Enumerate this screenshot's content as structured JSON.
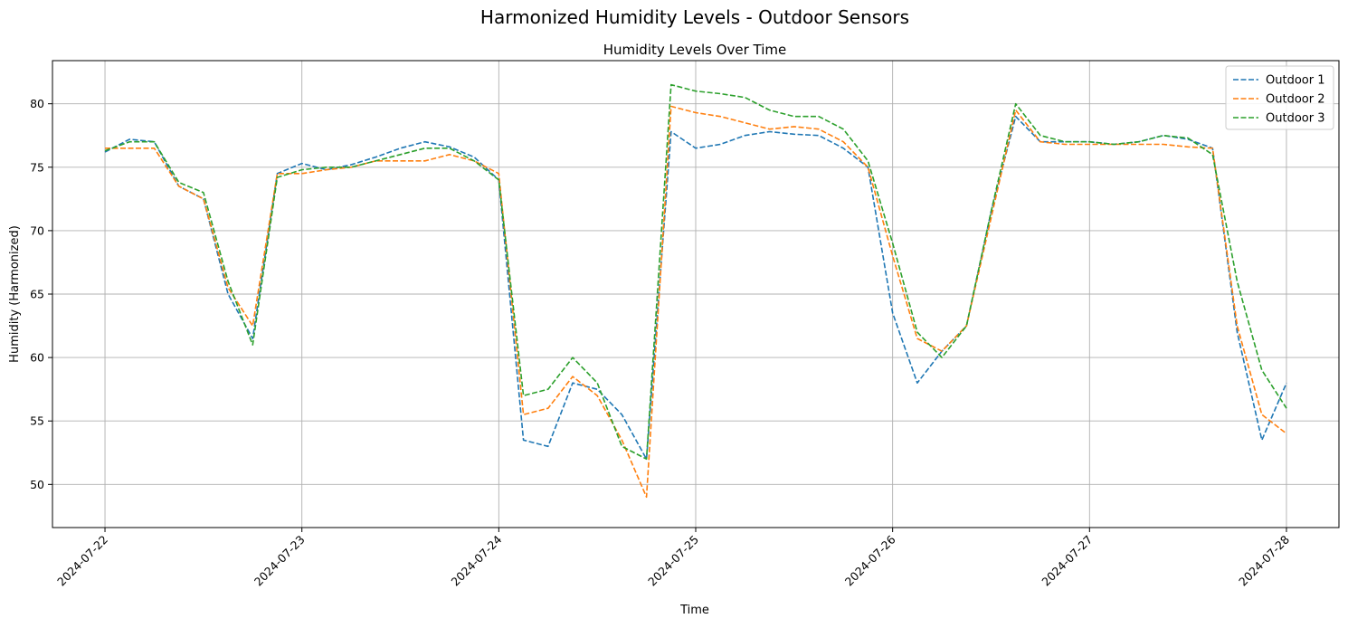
{
  "figure": {
    "suptitle": "Harmonized Humidity Levels - Outdoor Sensors"
  },
  "chart_data": {
    "type": "line",
    "title": "Humidity Levels Over Time",
    "xlabel": "Time",
    "ylabel": "Humidity (Harmonized)",
    "x_ticks": [
      "2024-07-22",
      "2024-07-23",
      "2024-07-24",
      "2024-07-25",
      "2024-07-26",
      "2024-07-27",
      "2024-07-28"
    ],
    "y_ticks": [
      50,
      55,
      60,
      65,
      70,
      75,
      80
    ],
    "xlim": [
      "2023-07-21T17:36",
      "2024-07-28T06:24"
    ],
    "ylim": [
      46.6,
      83.4
    ],
    "grid": true,
    "line_style": "dashed",
    "legend_position": "upper right",
    "x": [
      "2024-07-22T00:00",
      "2024-07-22T03:00",
      "2024-07-22T06:00",
      "2024-07-22T09:00",
      "2024-07-22T12:00",
      "2024-07-22T15:00",
      "2024-07-22T18:00",
      "2024-07-22T21:00",
      "2024-07-23T00:00",
      "2024-07-23T03:00",
      "2024-07-23T06:00",
      "2024-07-23T09:00",
      "2024-07-23T12:00",
      "2024-07-23T15:00",
      "2024-07-23T18:00",
      "2024-07-23T21:00",
      "2024-07-24T00:00",
      "2024-07-24T03:00",
      "2024-07-24T06:00",
      "2024-07-24T09:00",
      "2024-07-24T12:00",
      "2024-07-24T15:00",
      "2024-07-24T18:00",
      "2024-07-24T21:00",
      "2024-07-25T00:00",
      "2024-07-25T03:00",
      "2024-07-25T06:00",
      "2024-07-25T09:00",
      "2024-07-25T12:00",
      "2024-07-25T15:00",
      "2024-07-25T18:00",
      "2024-07-25T21:00",
      "2024-07-26T00:00",
      "2024-07-26T03:00",
      "2024-07-26T06:00",
      "2024-07-26T09:00",
      "2024-07-26T12:00",
      "2024-07-26T15:00",
      "2024-07-26T18:00",
      "2024-07-26T21:00",
      "2024-07-27T00:00",
      "2024-07-27T03:00",
      "2024-07-27T06:00",
      "2024-07-27T09:00",
      "2024-07-27T12:00",
      "2024-07-27T15:00",
      "2024-07-27T18:00",
      "2024-07-27T21:00",
      "2024-07-28T00:00"
    ],
    "series": [
      {
        "name": "Outdoor 1",
        "color": "#1f77b4",
        "values": [
          76.2,
          77.2,
          77.0,
          73.5,
          72.5,
          65.0,
          61.5,
          74.5,
          75.3,
          74.8,
          75.2,
          75.8,
          76.5,
          77.0,
          76.6,
          75.8,
          74.0,
          53.5,
          53.0,
          58.0,
          57.5,
          55.5,
          52.0,
          77.8,
          76.5,
          76.8,
          77.5,
          77.8,
          77.6,
          77.5,
          76.5,
          75.0,
          63.5,
          58.0,
          60.5,
          62.5,
          71.5,
          79.0,
          77.0,
          77.0,
          77.0,
          76.8,
          77.0,
          77.5,
          77.2,
          76.5,
          62.0,
          53.5,
          58.0
        ]
      },
      {
        "name": "Outdoor 2",
        "color": "#ff7f0e",
        "values": [
          76.5,
          76.5,
          76.5,
          73.5,
          72.5,
          65.5,
          62.5,
          74.5,
          74.5,
          74.8,
          75.0,
          75.5,
          75.5,
          75.5,
          76.0,
          75.5,
          74.5,
          55.5,
          56.0,
          58.5,
          57.0,
          53.5,
          49.0,
          79.8,
          79.3,
          79.0,
          78.5,
          78.0,
          78.2,
          78.0,
          77.0,
          75.0,
          68.0,
          61.5,
          60.5,
          62.5,
          71.0,
          79.5,
          77.0,
          76.8,
          76.8,
          76.8,
          76.8,
          76.8,
          76.6,
          76.5,
          62.5,
          55.5,
          54.0
        ]
      },
      {
        "name": "Outdoor 3",
        "color": "#2ca02c",
        "values": [
          76.3,
          77.0,
          77.0,
          73.8,
          73.0,
          66.0,
          61.0,
          74.2,
          74.8,
          75.0,
          75.0,
          75.5,
          76.0,
          76.5,
          76.5,
          75.5,
          74.0,
          57.0,
          57.5,
          60.0,
          58.0,
          53.0,
          52.0,
          81.5,
          81.0,
          80.8,
          80.5,
          79.5,
          79.0,
          79.0,
          78.0,
          75.5,
          69.0,
          62.0,
          60.0,
          62.5,
          71.5,
          80.0,
          77.5,
          77.0,
          77.0,
          76.8,
          77.0,
          77.5,
          77.3,
          76.0,
          66.0,
          59.0,
          56.0
        ]
      }
    ]
  }
}
